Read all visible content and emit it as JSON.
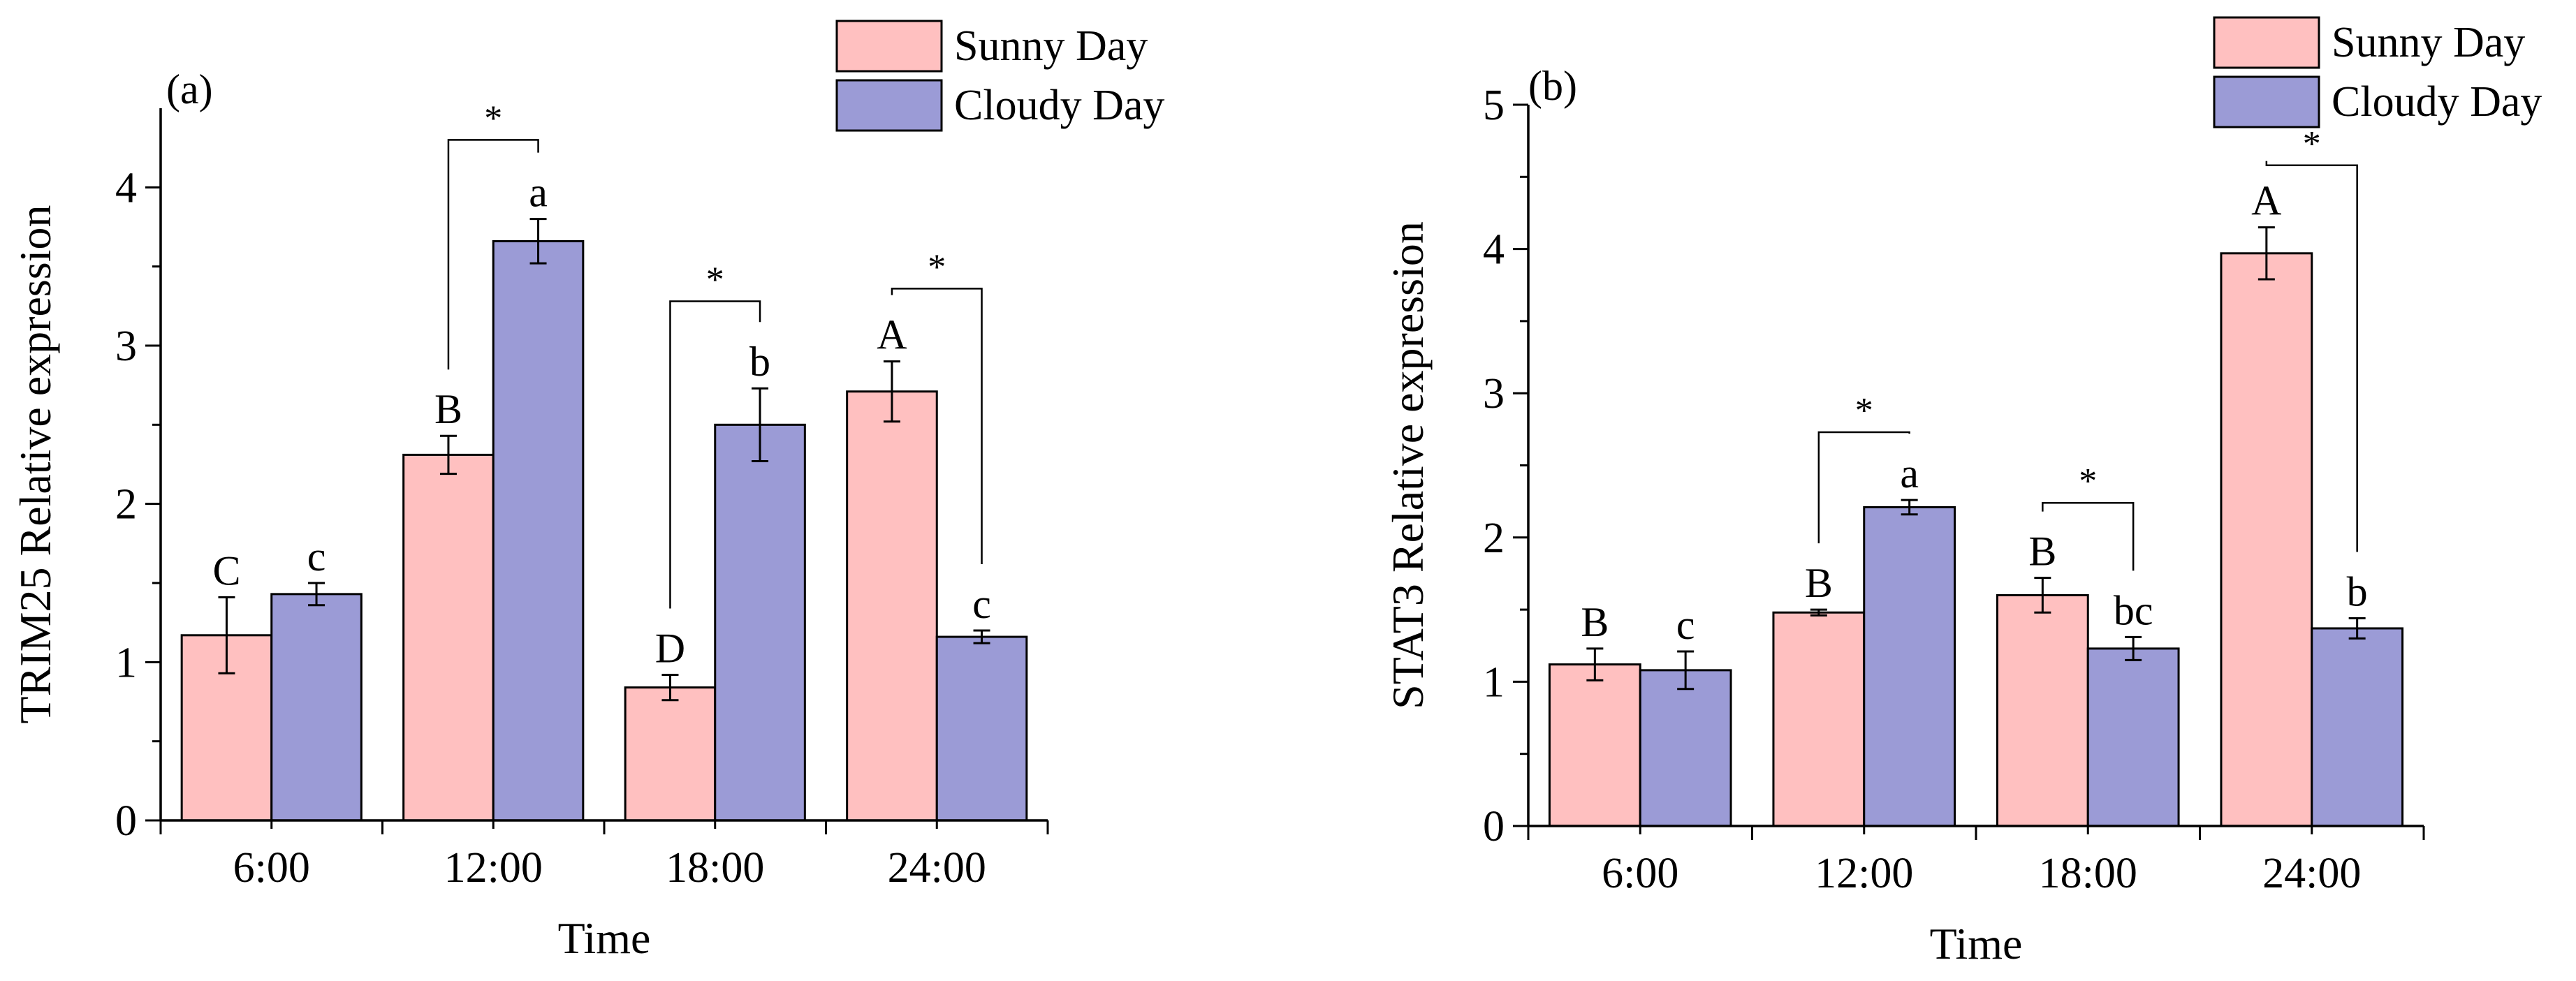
{
  "colors": {
    "sunny": "#FFC0C0",
    "cloudy": "#9B9BD6",
    "axis": "#000000"
  },
  "chart_data": [
    {
      "type": "bar",
      "panel_label": "(a)",
      "categories": [
        "6:00",
        "12:00",
        "18:00",
        "24:00"
      ],
      "xlabel": "Time",
      "ylabel": "TRIM25 Relative expression",
      "ylim": [
        0,
        4.5
      ],
      "yticks": [
        "0",
        "1",
        "2",
        "3",
        "4"
      ],
      "legend": {
        "placement": "top-right",
        "entries": [
          "Sunny  Day",
          "Cloudy Day"
        ]
      },
      "series": [
        {
          "name": "Sunny  Day",
          "values": [
            1.17,
            2.31,
            0.84,
            2.71
          ],
          "errors": [
            0.24,
            0.12,
            0.08,
            0.19
          ],
          "letters": [
            "C",
            "B",
            "D",
            "A"
          ]
        },
        {
          "name": "Cloudy Day",
          "values": [
            1.43,
            3.66,
            2.5,
            1.16
          ],
          "errors": [
            0.07,
            0.14,
            0.23,
            0.04
          ],
          "letters": [
            "c",
            "a",
            "b",
            "c"
          ]
        }
      ],
      "significance": [
        {
          "category": "12:00",
          "label": "*",
          "level": 4.3
        },
        {
          "category": "18:00",
          "label": "*",
          "level": 3.28
        },
        {
          "category": "24:00",
          "label": "*",
          "level": 3.36
        }
      ]
    },
    {
      "type": "bar",
      "panel_label": "(b)",
      "categories": [
        "6:00",
        "12:00",
        "18:00",
        "24:00"
      ],
      "xlabel": "Time",
      "ylabel": "STAT3 Relative expression",
      "ylim": [
        0,
        5
      ],
      "yticks": [
        "0",
        "1",
        "2",
        "3",
        "4",
        "5"
      ],
      "legend": {
        "placement": "top-right",
        "entries": [
          "Sunny  Day",
          "Cloudy Day"
        ]
      },
      "series": [
        {
          "name": "Sunny  Day",
          "values": [
            1.12,
            1.48,
            1.6,
            3.97
          ],
          "errors": [
            0.11,
            0.02,
            0.12,
            0.18
          ],
          "letters": [
            "B",
            "B",
            "B",
            "A"
          ]
        },
        {
          "name": "Cloudy Day",
          "values": [
            1.08,
            2.21,
            1.23,
            1.37
          ],
          "errors": [
            0.13,
            0.05,
            0.08,
            0.07
          ],
          "letters": [
            "c",
            "a",
            "bc",
            "b"
          ]
        }
      ],
      "significance": [
        {
          "category": "12:00",
          "label": "*",
          "level": 2.73
        },
        {
          "category": "18:00",
          "label": "*",
          "level": 2.24
        },
        {
          "category": "24:00",
          "label": "*",
          "level": 4.58
        }
      ]
    }
  ]
}
